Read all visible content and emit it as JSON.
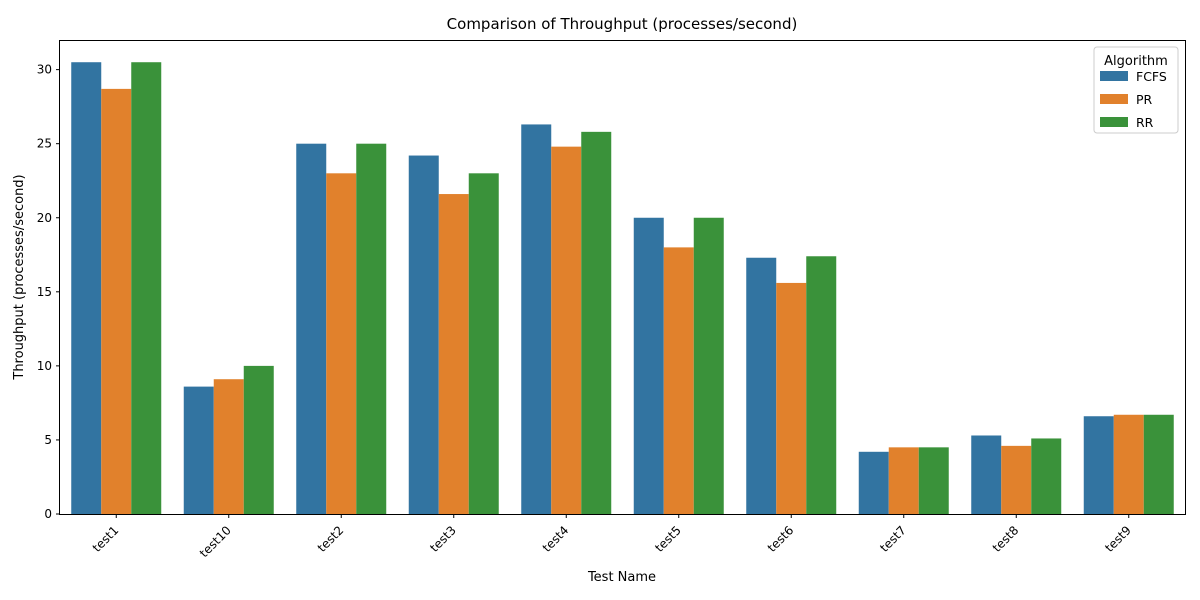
{
  "chart_data": {
    "type": "bar",
    "title": "Comparison of Throughput (processes/second)",
    "xlabel": "Test Name",
    "ylabel": "Throughput (processes/second)",
    "categories": [
      "test1",
      "test10",
      "test2",
      "test3",
      "test4",
      "test5",
      "test6",
      "test7",
      "test8",
      "test9"
    ],
    "series": [
      {
        "name": "FCFS",
        "color": "#3274a1",
        "values": [
          30.5,
          8.6,
          25.0,
          24.2,
          26.3,
          20.0,
          17.3,
          4.2,
          5.3,
          6.6
        ]
      },
      {
        "name": "PR",
        "color": "#e1812c",
        "values": [
          28.7,
          9.1,
          23.0,
          21.6,
          24.8,
          18.0,
          15.6,
          4.5,
          4.6,
          6.7
        ]
      },
      {
        "name": "RR",
        "color": "#3a923a",
        "values": [
          30.5,
          10.0,
          25.0,
          23.0,
          25.8,
          20.0,
          17.4,
          4.5,
          5.1,
          6.7
        ]
      }
    ],
    "ylim": [
      0,
      32
    ],
    "yticks": [
      0,
      5,
      10,
      15,
      20,
      25,
      30
    ],
    "legend": {
      "title": "Algorithm",
      "placement": "top-right"
    },
    "grid": false
  }
}
